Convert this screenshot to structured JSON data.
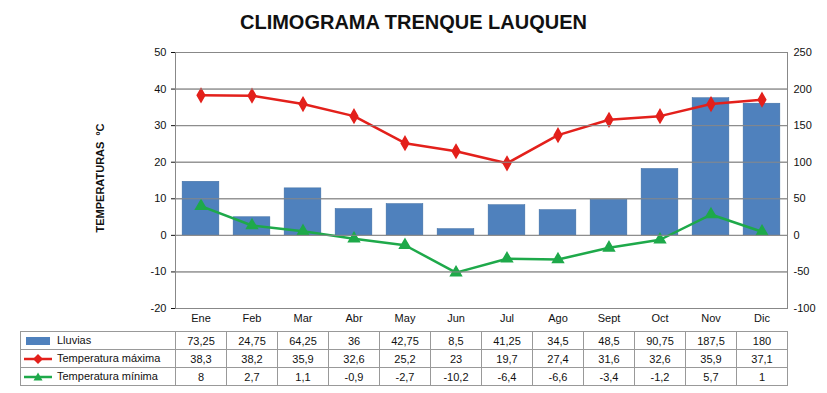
{
  "chart_data": {
    "type": "bar",
    "title": "CLIMOGRAMA TRENQUE LAUQUEN",
    "y_label": "TEMPERATURAS  ºC",
    "categories": [
      "Ene",
      "Feb",
      "Mar",
      "Abr",
      "May",
      "Jun",
      "Jul",
      "Ago",
      "Sept",
      "Oct",
      "Nov",
      "Dic"
    ],
    "ylim": [
      -20,
      50
    ],
    "yticks": [
      -20,
      -10,
      0,
      10,
      20,
      30,
      40,
      50
    ],
    "y2lim": [
      -100,
      250
    ],
    "y2ticks": [
      -100,
      -50,
      0,
      50,
      100,
      150,
      200,
      250
    ],
    "grid": true,
    "legend": "bottom",
    "series": [
      {
        "name": "Lluvias",
        "type": "bar",
        "axis": "y2",
        "color": "#4f81bd",
        "values": [
          73.25,
          24.75,
          64.25,
          36,
          42.75,
          8.5,
          41.25,
          34.5,
          48.5,
          90.75,
          187.5,
          180
        ],
        "value_labels": [
          "73,25",
          "24,75",
          "64,25",
          "36",
          "42,75",
          "8,5",
          "41,25",
          "34,5",
          "48,5",
          "90,75",
          "187,5",
          "180"
        ]
      },
      {
        "name": "Temperatura máxima",
        "type": "line",
        "color": "#e3201b",
        "marker": "diamond",
        "values": [
          38.3,
          38.2,
          35.9,
          32.6,
          25.2,
          23,
          19.7,
          27.4,
          31.6,
          32.6,
          35.9,
          37.1
        ],
        "value_labels": [
          "38,3",
          "38,2",
          "35,9",
          "32,6",
          "25,2",
          "23",
          "19,7",
          "27,4",
          "31,6",
          "32,6",
          "35,9",
          "37,1"
        ]
      },
      {
        "name": "Temperatura mínima",
        "type": "line",
        "color": "#1ea94a",
        "marker": "triangle",
        "values": [
          8,
          2.7,
          1.1,
          -0.9,
          -2.7,
          -10.2,
          -6.4,
          -6.6,
          -3.4,
          -1.2,
          5.7,
          1
        ],
        "value_labels": [
          "8",
          "2,7",
          "1,1",
          "-0,9",
          "-2,7",
          "-10,2",
          "-6,4",
          "-6,6",
          "-3,4",
          "-1,2",
          "5,7",
          "1"
        ]
      }
    ]
  }
}
